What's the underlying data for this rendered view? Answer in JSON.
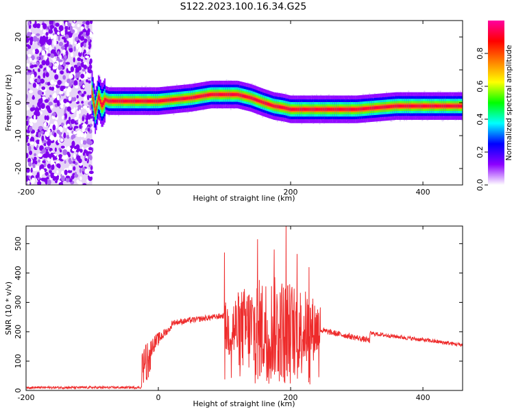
{
  "title": "S122.2023.100.16.34.G25",
  "chart_data": [
    {
      "type": "heatmap",
      "title": "",
      "xlabel": "Height of straight line (km)",
      "ylabel": "Frequency (Hz)",
      "xlim": [
        -200,
        460
      ],
      "ylim": [
        -25,
        25
      ],
      "xticks": [
        -200,
        0,
        200,
        400
      ],
      "yticks": [
        -20,
        -10,
        0,
        10,
        20
      ],
      "colorbar": {
        "label": "Normalized spectral amplitude",
        "range": [
          0,
          1
        ],
        "ticks": [
          0.0,
          0.2,
          0.4,
          0.6,
          0.8
        ],
        "colors": [
          "#ffffff",
          "#8c00ff",
          "#0000ff",
          "#00ffff",
          "#00ff00",
          "#ffff00",
          "#ff8000",
          "#ff0000",
          "#ff00a0"
        ]
      },
      "noise_region": {
        "x": [
          -200,
          -100
        ],
        "y": [
          -25,
          25
        ]
      },
      "ridge": {
        "x": [
          -100,
          -95,
          -90,
          -85,
          -80,
          -75,
          -70,
          -50,
          0,
          50,
          80,
          100,
          120,
          140,
          160,
          175,
          190,
          200,
          250,
          300,
          330,
          360,
          400,
          460
        ],
        "freq": [
          3,
          -3,
          2,
          -1,
          1,
          0.5,
          0.5,
          0.5,
          0.5,
          1.5,
          2.5,
          2.5,
          2.5,
          1.5,
          0,
          -1,
          -1.5,
          -2,
          -2,
          -2,
          -1.5,
          -1,
          -1,
          -1
        ],
        "grid": false
      }
    },
    {
      "type": "line",
      "title": "",
      "xlabel": "Height of straight line (km)",
      "ylabel": "SNR (10 * v/v)",
      "xlim": [
        -200,
        460
      ],
      "ylim": [
        0,
        560
      ],
      "xticks": [
        -200,
        0,
        200,
        400
      ],
      "yticks": [
        0,
        100,
        200,
        300,
        400,
        500
      ],
      "series": [
        {
          "color": "#ee2b2b",
          "segments": [
            {
              "kind": "noise",
              "x": [
                -200,
                -25
              ],
              "base": 10,
              "amp": 8
            },
            {
              "kind": "rise",
              "x": [
                -25,
                20
              ],
              "from": 80,
              "to": 215,
              "amp": 70
            },
            {
              "kind": "band",
              "x": [
                20,
                100
              ],
              "from": 230,
              "to": 255,
              "amp": 20
            },
            {
              "kind": "burst",
              "x": [
                100,
                245
              ],
              "base": 210,
              "amp": 180
            },
            {
              "kind": "band",
              "x": [
                245,
                320
              ],
              "from": 205,
              "to": 170,
              "amp": 20
            },
            {
              "kind": "band",
              "x": [
                320,
                460
              ],
              "from": 195,
              "to": 155,
              "amp": 14
            }
          ],
          "peaks": [
            {
              "x": 100,
              "y": 470
            },
            {
              "x": 150,
              "y": 515
            },
            {
              "x": 175,
              "y": 480
            },
            {
              "x": 193,
              "y": 560
            },
            {
              "x": 210,
              "y": 465
            },
            {
              "x": 228,
              "y": 420
            }
          ]
        }
      ],
      "grid": false
    }
  ]
}
